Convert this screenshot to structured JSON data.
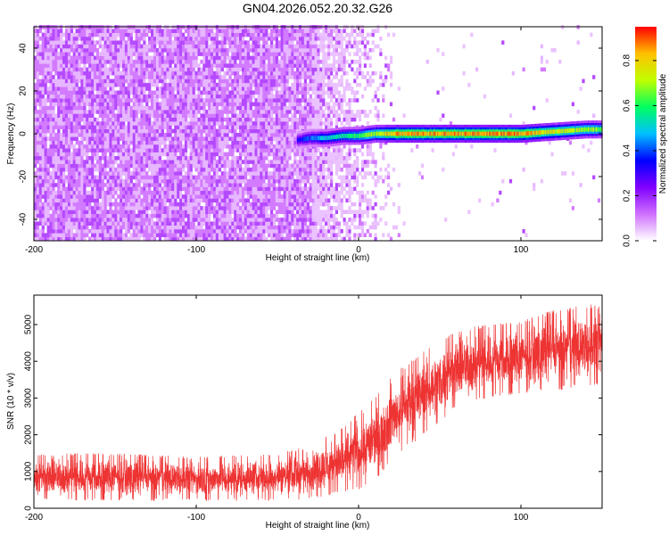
{
  "chart_data": [
    {
      "type": "heatmap",
      "title": "GN04.2026.052.20.32.G26",
      "xlabel": "Height of straight line (km)",
      "ylabel": "Frequency (Hz)",
      "xlim": [
        -200,
        150
      ],
      "ylim": [
        -50,
        50
      ],
      "xticks": [
        -200,
        -100,
        0,
        100
      ],
      "yticks": [
        -40,
        -20,
        0,
        20,
        40
      ],
      "colorbar": {
        "label": "Normalized spectral amplitude",
        "range": [
          0.0,
          0.95
        ],
        "ticks": [
          "0.0",
          "0.2",
          "0.4",
          "0.6",
          "0.8"
        ],
        "colormap": [
          "#ffffff",
          "#d070ff",
          "#8000ff",
          "#0000ff",
          "#00c0ff",
          "#00ff60",
          "#c0ff00",
          "#ffc000",
          "#ff0000"
        ]
      },
      "background_noise": {
        "dense_x_range": [
          -200,
          -30
        ],
        "sparse_x_range": [
          -30,
          25
        ],
        "typical_amplitude": 0.1
      },
      "signal_ridge": {
        "x": [
          -38,
          -30,
          -20,
          -10,
          0,
          10,
          20,
          40,
          60,
          80,
          100,
          120,
          140,
          150
        ],
        "frequency": [
          -3,
          -2,
          -2,
          -1,
          -1,
          0,
          0,
          0,
          0,
          0,
          0,
          1,
          2,
          2
        ],
        "amplitude": [
          0.35,
          0.45,
          0.55,
          0.6,
          0.65,
          0.75,
          0.9,
          0.9,
          0.92,
          0.92,
          0.93,
          0.8,
          0.75,
          0.7
        ]
      }
    },
    {
      "type": "line",
      "title": "",
      "xlabel": "Height of straight line (km)",
      "ylabel": "SNR (10 * v/v)",
      "xlim": [
        -200,
        150
      ],
      "ylim": [
        0,
        5800
      ],
      "xticks": [
        -200,
        -100,
        0,
        100
      ],
      "yticks": [
        0,
        1000,
        2000,
        3000,
        4000,
        5000
      ],
      "color": "#ee3333",
      "envelope": {
        "x": [
          -200,
          -150,
          -100,
          -50,
          -30,
          -10,
          0,
          10,
          20,
          40,
          60,
          80,
          100,
          120,
          150
        ],
        "low": [
          200,
          200,
          200,
          200,
          250,
          400,
          500,
          700,
          1300,
          2000,
          2700,
          3000,
          3100,
          3200,
          3300
        ],
        "high": [
          1500,
          1500,
          1400,
          1500,
          1700,
          2200,
          2700,
          3000,
          3600,
          4300,
          4900,
          5000,
          5100,
          5400,
          5600
        ]
      }
    }
  ]
}
